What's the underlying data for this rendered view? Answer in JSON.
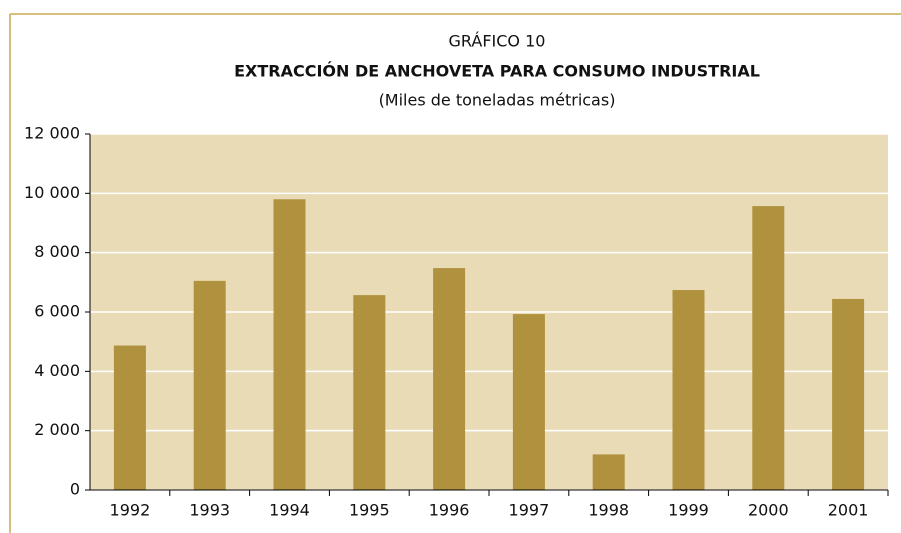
{
  "chart_data": {
    "type": "bar",
    "chart_number": "GRÁFICO 10",
    "title": "EXTRACCIÓN DE ANCHOVETA PARA CONSUMO INDUSTRIAL",
    "subtitle": "(Miles de toneladas métricas)",
    "categories": [
      "1992",
      "1993",
      "1994",
      "1995",
      "1996",
      "1997",
      "1998",
      "1999",
      "2000",
      "2001"
    ],
    "values": [
      4870,
      7050,
      9800,
      6570,
      7480,
      5930,
      1200,
      6740,
      9570,
      6440
    ],
    "color": "#b0913e",
    "ylim": [
      0,
      12000
    ],
    "yticks": [
      0,
      {
        "value": 2000,
        "label": "2 000"
      },
      {
        "value": 4000,
        "label": "4 000"
      },
      {
        "value": 6000,
        "label": "6 000"
      },
      {
        "value": 8000,
        "label": "8 000"
      },
      {
        "value": 10000,
        "label": "10 000"
      },
      {
        "value": 12000,
        "label": "12 000"
      }
    ],
    "grid": true
  }
}
